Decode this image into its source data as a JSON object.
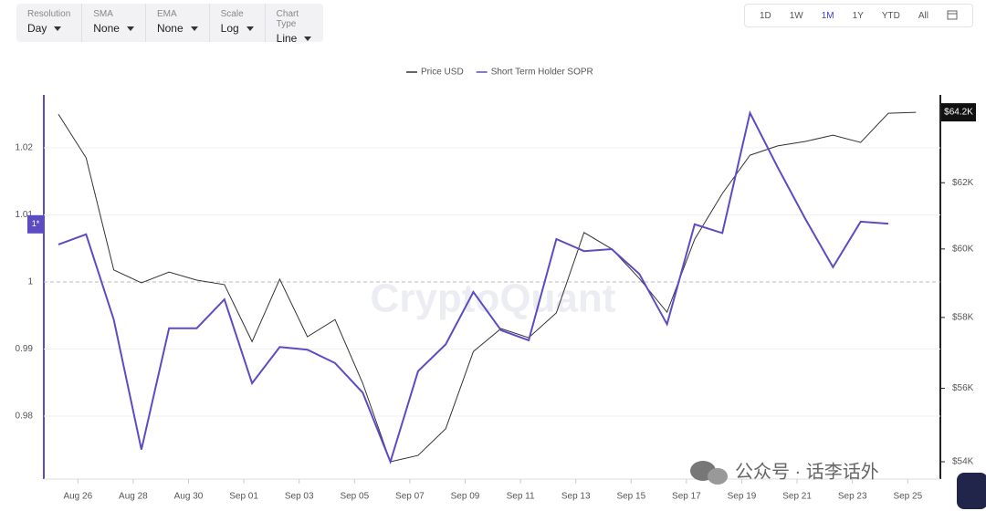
{
  "toolbar": {
    "controls": [
      {
        "label": "Resolution",
        "value": "Day"
      },
      {
        "label": "SMA",
        "value": "None"
      },
      {
        "label": "EMA",
        "value": "None"
      },
      {
        "label": "Scale",
        "value": "Log"
      },
      {
        "label": "Chart Type",
        "value": "Line"
      }
    ],
    "ranges": [
      "1D",
      "1W",
      "1M",
      "1Y",
      "YTD",
      "All"
    ],
    "active_range": 2
  },
  "watermark": "CryptoQuant",
  "footer_watermark": "公众号 · 话李话外",
  "chart_data": {
    "type": "line",
    "categories": [
      null,
      "Aug 26",
      null,
      "Aug 28",
      null,
      "Aug 30",
      null,
      "Sep 01",
      null,
      "Sep 03",
      null,
      "Sep 05",
      null,
      "Sep 07",
      null,
      "Sep 09",
      null,
      "Sep 11",
      null,
      "Sep 13",
      null,
      "Sep 15",
      null,
      "Sep 17",
      null,
      "Sep 19",
      null,
      "Sep 21",
      null,
      "Sep 23",
      null,
      "Sep 25"
    ],
    "series": [
      {
        "name": "Price USD",
        "color": "#333333",
        "axis": "y2",
        "values": [
          64140,
          62770,
          59380,
          59000,
          59320,
          59080,
          58950,
          57310,
          59110,
          57450,
          57940,
          56140,
          54000,
          54170,
          54890,
          57030,
          57680,
          57420,
          58130,
          60490,
          60000,
          59130,
          58150,
          60290,
          61670,
          62850,
          63140,
          63280,
          63480,
          63250,
          64170,
          64200
        ]
      },
      {
        "name": "Short Term Holder SOPR",
        "color": "#5b4cc4",
        "values": [
          1.0056,
          1.0071,
          0.9944,
          0.975,
          0.9931,
          0.9931,
          0.9974,
          0.9849,
          0.9903,
          0.9899,
          0.9879,
          0.9835,
          0.9732,
          0.9867,
          0.9907,
          0.9985,
          0.9928,
          0.9913,
          1.0064,
          1.0046,
          1.0049,
          1.0012,
          0.9937,
          1.0086,
          1.0073,
          1.0252,
          1.0171,
          1.0094,
          1.0022,
          1.009,
          1.0087,
          null
        ]
      }
    ],
    "ylim": [
      0.97061,
      1.02776
    ],
    "yticks": [
      0.98,
      0.99,
      1,
      1.01,
      1.02
    ],
    "y2lim": [
      53539,
      64727
    ],
    "y2log": true,
    "y2ticks": [
      {
        "value": 54000,
        "label": "$54K"
      },
      {
        "value": 56000,
        "label": "$56K"
      },
      {
        "value": 58000,
        "label": "$58K"
      },
      {
        "value": 60000,
        "label": "$60K"
      },
      {
        "value": 62000,
        "label": "$62K"
      }
    ],
    "reference_line": 1,
    "axis_badge": {
      "value": 1.0086,
      "label": "1*"
    },
    "price_badge": {
      "value": 64200,
      "label": "$64.2K"
    },
    "grid": true
  }
}
